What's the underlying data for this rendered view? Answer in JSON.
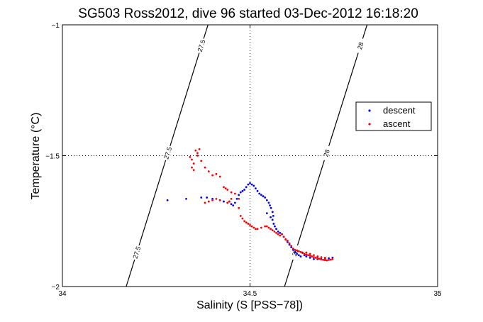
{
  "chart_data": {
    "type": "scatter",
    "title": "SG503 Ross2012, dive 96 started 03-Dec-2012 16:18:20",
    "xlabel": "Salinity (S [PSS−78])",
    "ylabel": "Temperature (°C)",
    "xlim": [
      34,
      35
    ],
    "ylim": [
      -2,
      -1
    ],
    "xticks": [
      "34",
      "34.5",
      "35"
    ],
    "yticks": [
      "−1",
      "−1.5",
      "−2"
    ],
    "grid": "dotted at 34.5 and -1.5",
    "legend_position": "right",
    "contours": [
      {
        "label": "27.5",
        "points": [
          [
            34.388,
            -1
          ],
          [
            34.17,
            -2
          ]
        ]
      },
      {
        "label": "28",
        "points": [
          [
            34.812,
            -1
          ],
          [
            34.592,
            -2
          ]
        ]
      }
    ],
    "series": [
      {
        "name": "descent",
        "color": "#0000ff",
        "points": [
          [
            34.28,
            -1.67
          ],
          [
            34.33,
            -1.665
          ],
          [
            34.37,
            -1.66
          ],
          [
            34.385,
            -1.66
          ],
          [
            34.4,
            -1.665
          ],
          [
            34.42,
            -1.67
          ],
          [
            34.43,
            -1.675
          ],
          [
            34.44,
            -1.68
          ],
          [
            34.45,
            -1.685
          ],
          [
            34.455,
            -1.69
          ],
          [
            34.46,
            -1.68
          ],
          [
            34.465,
            -1.665
          ],
          [
            34.47,
            -1.65
          ],
          [
            34.475,
            -1.64
          ],
          [
            34.48,
            -1.635
          ],
          [
            34.485,
            -1.63
          ],
          [
            34.49,
            -1.62
          ],
          [
            34.495,
            -1.61
          ],
          [
            34.5,
            -1.605
          ],
          [
            34.505,
            -1.61
          ],
          [
            34.51,
            -1.615
          ],
          [
            34.515,
            -1.625
          ],
          [
            34.52,
            -1.635
          ],
          [
            34.525,
            -1.645
          ],
          [
            34.53,
            -1.65
          ],
          [
            34.535,
            -1.655
          ],
          [
            34.54,
            -1.66
          ],
          [
            34.545,
            -1.67
          ],
          [
            34.55,
            -1.68
          ],
          [
            34.553,
            -1.69
          ],
          [
            34.556,
            -1.7
          ],
          [
            34.56,
            -1.715
          ],
          [
            34.562,
            -1.73
          ],
          [
            34.56,
            -1.745
          ],
          [
            34.563,
            -1.76
          ],
          [
            34.566,
            -1.77
          ],
          [
            34.57,
            -1.78
          ],
          [
            34.575,
            -1.79
          ],
          [
            34.58,
            -1.795
          ],
          [
            34.585,
            -1.8
          ],
          [
            34.59,
            -1.81
          ],
          [
            34.595,
            -1.82
          ],
          [
            34.6,
            -1.83
          ],
          [
            34.605,
            -1.84
          ],
          [
            34.61,
            -1.85
          ],
          [
            34.615,
            -1.86
          ],
          [
            34.62,
            -1.87
          ],
          [
            34.625,
            -1.875
          ],
          [
            34.63,
            -1.88
          ],
          [
            34.635,
            -1.885
          ],
          [
            34.64,
            -1.87
          ],
          [
            34.645,
            -1.88
          ],
          [
            34.65,
            -1.885
          ],
          [
            34.66,
            -1.89
          ],
          [
            34.67,
            -1.895
          ],
          [
            34.68,
            -1.895
          ],
          [
            34.69,
            -1.895
          ],
          [
            34.7,
            -1.893
          ],
          [
            34.71,
            -1.892
          ],
          [
            34.72,
            -1.89
          ],
          [
            34.545,
            -1.72
          ],
          [
            34.555,
            -1.735
          ]
        ]
      },
      {
        "name": "ascent",
        "color": "#ff0000",
        "points": [
          [
            34.34,
            -1.505
          ],
          [
            34.345,
            -1.515
          ],
          [
            34.35,
            -1.53
          ],
          [
            34.345,
            -1.545
          ],
          [
            34.35,
            -1.555
          ],
          [
            34.355,
            -1.48
          ],
          [
            34.36,
            -1.49
          ],
          [
            34.365,
            -1.475
          ],
          [
            34.36,
            -1.5
          ],
          [
            34.37,
            -1.52
          ],
          [
            34.38,
            -1.545
          ],
          [
            34.39,
            -1.56
          ],
          [
            34.4,
            -1.575
          ],
          [
            34.41,
            -1.57
          ],
          [
            34.42,
            -1.58
          ],
          [
            34.43,
            -1.62
          ],
          [
            34.435,
            -1.625
          ],
          [
            34.44,
            -1.63
          ],
          [
            34.45,
            -1.64
          ],
          [
            34.46,
            -1.645
          ],
          [
            34.45,
            -1.665
          ],
          [
            34.445,
            -1.675
          ],
          [
            34.44,
            -1.68
          ],
          [
            34.47,
            -1.665
          ],
          [
            34.42,
            -1.67
          ],
          [
            34.41,
            -1.665
          ],
          [
            34.4,
            -1.67
          ],
          [
            34.39,
            -1.675
          ],
          [
            34.38,
            -1.68
          ],
          [
            34.47,
            -1.7
          ],
          [
            34.475,
            -1.73
          ],
          [
            34.48,
            -1.74
          ],
          [
            34.485,
            -1.75
          ],
          [
            34.49,
            -1.755
          ],
          [
            34.495,
            -1.76
          ],
          [
            34.5,
            -1.765
          ],
          [
            34.505,
            -1.77
          ],
          [
            34.51,
            -1.775
          ],
          [
            34.515,
            -1.78
          ],
          [
            34.52,
            -1.78
          ],
          [
            34.53,
            -1.775
          ],
          [
            34.54,
            -1.77
          ],
          [
            34.545,
            -1.77
          ],
          [
            34.55,
            -1.775
          ],
          [
            34.555,
            -1.78
          ],
          [
            34.56,
            -1.785
          ],
          [
            34.565,
            -1.79
          ],
          [
            34.57,
            -1.795
          ],
          [
            34.575,
            -1.8
          ],
          [
            34.58,
            -1.805
          ],
          [
            34.585,
            -1.8
          ],
          [
            34.59,
            -1.81
          ],
          [
            34.595,
            -1.82
          ],
          [
            34.6,
            -1.825
          ],
          [
            34.605,
            -1.835
          ],
          [
            34.61,
            -1.845
          ],
          [
            34.615,
            -1.855
          ],
          [
            34.62,
            -1.86
          ],
          [
            34.625,
            -1.862
          ],
          [
            34.63,
            -1.865
          ],
          [
            34.635,
            -1.868
          ],
          [
            34.64,
            -1.872
          ],
          [
            34.645,
            -1.875
          ],
          [
            34.65,
            -1.878
          ],
          [
            34.655,
            -1.88
          ],
          [
            34.66,
            -1.882
          ],
          [
            34.665,
            -1.885
          ],
          [
            34.67,
            -1.888
          ],
          [
            34.675,
            -1.89
          ],
          [
            34.68,
            -1.892
          ],
          [
            34.685,
            -1.894
          ],
          [
            34.69,
            -1.896
          ],
          [
            34.695,
            -1.898
          ],
          [
            34.7,
            -1.899
          ],
          [
            34.705,
            -1.9
          ],
          [
            34.71,
            -1.898
          ],
          [
            34.715,
            -1.897
          ],
          [
            34.72,
            -1.895
          ],
          [
            34.65,
            -1.87
          ],
          [
            34.66,
            -1.875
          ],
          [
            34.67,
            -1.88
          ],
          [
            34.68,
            -1.885
          ],
          [
            34.69,
            -1.888
          ],
          [
            34.7,
            -1.89
          ]
        ]
      }
    ]
  }
}
